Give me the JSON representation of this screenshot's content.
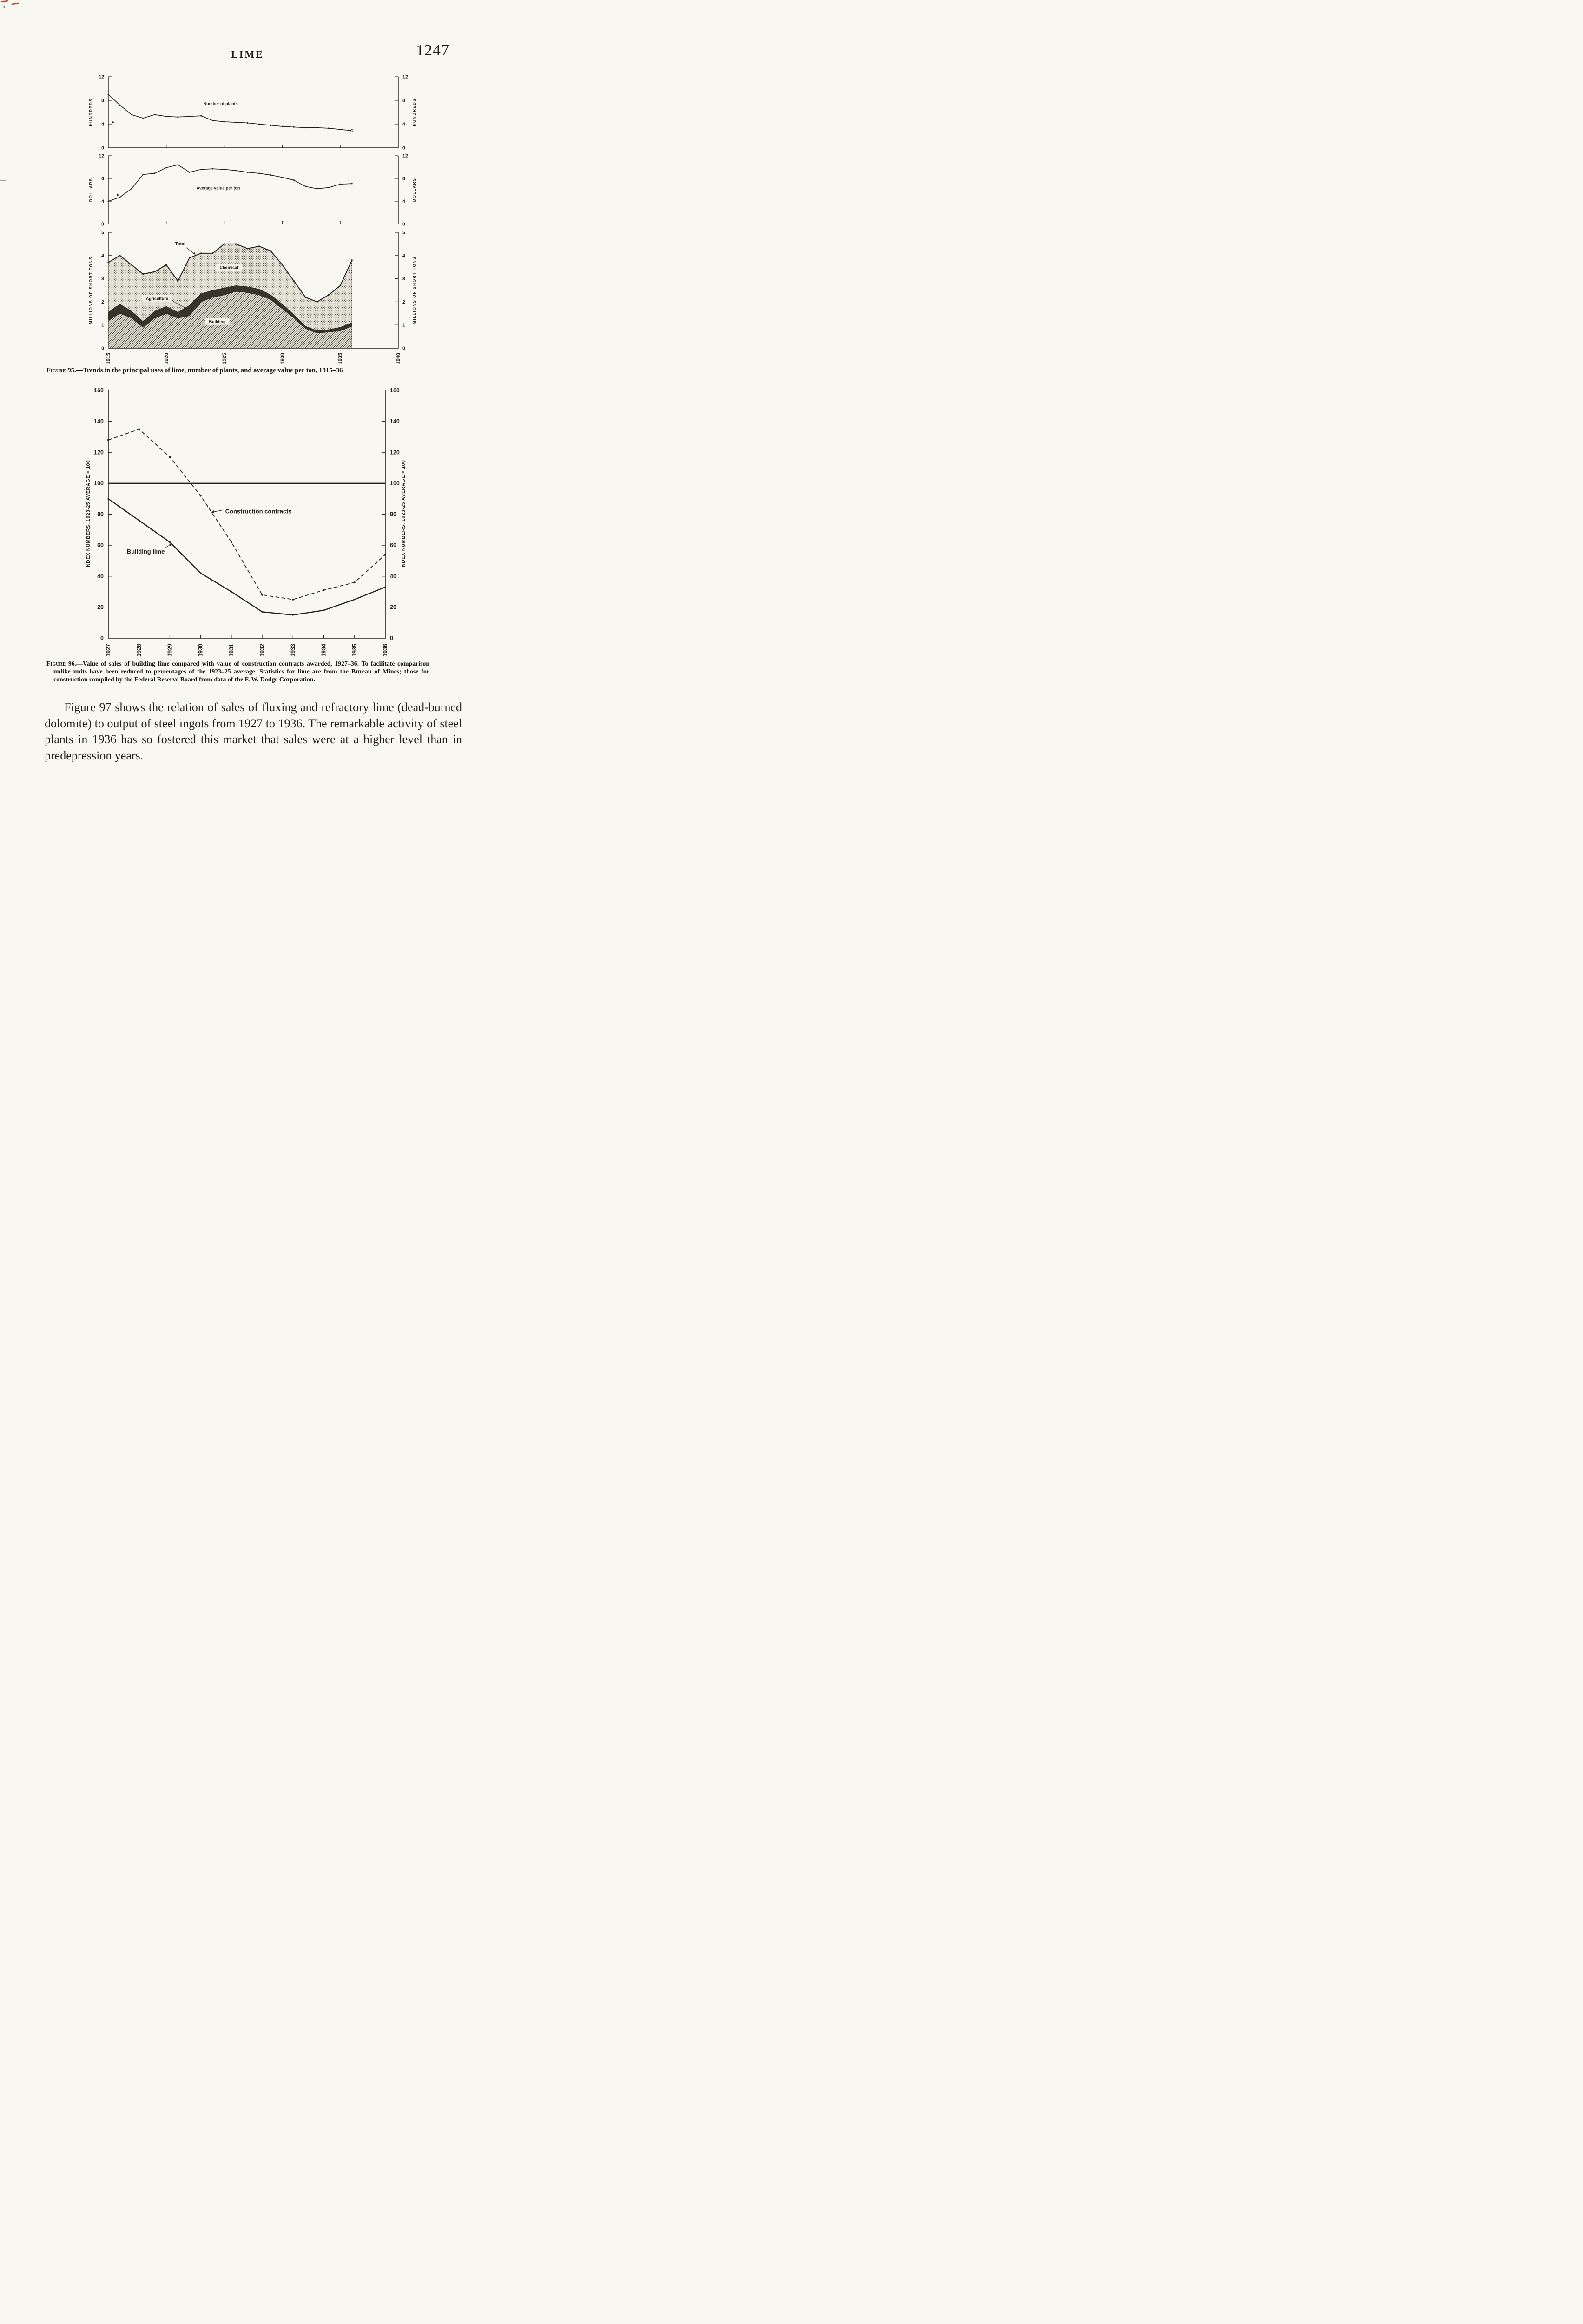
{
  "header": {
    "title": "LIME",
    "page_number": "1247"
  },
  "figure95": {
    "caption_label": "Figure 95.",
    "caption_text": "—Trends in the principal uses of lime, number of plants, and average value per ton, 1915–36"
  },
  "figure96": {
    "caption_label": "Figure 96.",
    "caption_text": "—Value of sales of building lime compared with value of construction contracts awarded, 1927–36.  To facilitate comparison unlike units have been reduced to percentages of the 1923–25 average.  Statistics for lime are from the Bureau of Mines; those for construction compiled by the Federal Reserve Board from data of the F. W. Dodge Corporation."
  },
  "paragraph": {
    "text": "Figure 97 shows the relation of sales of fluxing and refractory lime (dead-burned dolomite) to output of steel ingots from 1927 to 1936. The remarkable activity of steel plants in 1936 has so fostered this market that sales were at a higher level than in predepression years."
  },
  "chart_data": [
    {
      "id": "fig95-plants",
      "type": "line",
      "title": "Number of plants",
      "ylabel": "HUNDREDS",
      "ylim": [
        0,
        12
      ],
      "yticks": [
        0,
        4,
        8,
        12
      ],
      "xlim": [
        1915,
        1940
      ],
      "x": [
        1915,
        1916,
        1917,
        1918,
        1919,
        1920,
        1921,
        1922,
        1923,
        1924,
        1925,
        1926,
        1927,
        1928,
        1929,
        1930,
        1931,
        1932,
        1933,
        1934,
        1935,
        1936
      ],
      "values": [
        9.0,
        7.2,
        5.6,
        5.0,
        5.6,
        5.3,
        5.2,
        5.3,
        5.4,
        4.6,
        4.4,
        4.3,
        4.2,
        4.0,
        3.8,
        3.6,
        3.5,
        3.4,
        3.4,
        3.3,
        3.1,
        2.9
      ],
      "stray_point": [
        1915.4,
        4.3
      ]
    },
    {
      "id": "fig95-value",
      "type": "line",
      "title": "Average value per ton",
      "ylabel": "DOLLARS",
      "ylim": [
        0,
        12
      ],
      "yticks": [
        0,
        4,
        8,
        12
      ],
      "xlim": [
        1915,
        1940
      ],
      "x": [
        1915,
        1916,
        1917,
        1918,
        1919,
        1920,
        1921,
        1922,
        1923,
        1924,
        1925,
        1926,
        1927,
        1928,
        1929,
        1930,
        1931,
        1932,
        1933,
        1934,
        1935,
        1936
      ],
      "values": [
        4.0,
        4.7,
        6.2,
        8.7,
        8.9,
        9.9,
        10.4,
        9.1,
        9.6,
        9.7,
        9.6,
        9.4,
        9.1,
        8.9,
        8.6,
        8.2,
        7.7,
        6.6,
        6.2,
        6.4,
        7.0,
        7.1
      ],
      "stray_point": [
        1915.8,
        5.1
      ]
    },
    {
      "id": "fig95-uses",
      "type": "stacked-area",
      "ylabel": "MILLIONS OF SHORT TONS",
      "ylim": [
        0,
        5
      ],
      "yticks": [
        0,
        1,
        2,
        3,
        4,
        5
      ],
      "xlim": [
        1915,
        1940
      ],
      "xticks": [
        1915,
        1920,
        1925,
        1930,
        1935,
        1940
      ],
      "x": [
        1915,
        1916,
        1917,
        1918,
        1919,
        1920,
        1921,
        1922,
        1923,
        1924,
        1925,
        1926,
        1927,
        1928,
        1929,
        1930,
        1931,
        1932,
        1933,
        1934,
        1935,
        1936
      ],
      "series": [
        {
          "name": "Building",
          "fill": "hatch",
          "values": [
            1.2,
            1.5,
            1.3,
            0.9,
            1.3,
            1.5,
            1.3,
            1.4,
            2.0,
            2.2,
            2.3,
            2.45,
            2.4,
            2.3,
            2.1,
            1.7,
            1.3,
            0.85,
            0.65,
            0.7,
            0.75,
            0.95
          ]
        },
        {
          "name": "Agriculture",
          "fill": "solid-dark",
          "values": [
            0.35,
            0.4,
            0.3,
            0.25,
            0.3,
            0.3,
            0.25,
            0.45,
            0.35,
            0.3,
            0.3,
            0.25,
            0.25,
            0.25,
            0.2,
            0.2,
            0.15,
            0.1,
            0.1,
            0.1,
            0.15,
            0.15
          ]
        },
        {
          "name": "Chemical",
          "fill": "stipple",
          "values": [
            2.15,
            2.1,
            2.0,
            2.05,
            1.7,
            1.8,
            1.35,
            2.05,
            1.75,
            1.6,
            1.9,
            1.8,
            1.65,
            1.85,
            1.9,
            1.7,
            1.45,
            1.25,
            1.25,
            1.5,
            1.8,
            2.7
          ]
        }
      ],
      "total_label": "Total"
    },
    {
      "id": "fig96",
      "type": "line",
      "ylabel": "INDEX NUMBERS, 1923-25 AVERAGE = 100",
      "ylim": [
        0,
        160
      ],
      "yticks": [
        0,
        20,
        40,
        60,
        80,
        100,
        120,
        140,
        160
      ],
      "x": [
        1927,
        1928,
        1929,
        1930,
        1931,
        1932,
        1933,
        1934,
        1935,
        1936
      ],
      "series": [
        {
          "name": "Construction contracts",
          "style": "dashed",
          "values": [
            128,
            135,
            117,
            92,
            62,
            28,
            25,
            31,
            36,
            54
          ]
        },
        {
          "name": "Building lime",
          "style": "solid",
          "values": [
            90,
            76,
            62,
            42,
            30,
            17,
            15,
            18,
            25,
            33
          ]
        }
      ],
      "reference_line": 100
    }
  ]
}
